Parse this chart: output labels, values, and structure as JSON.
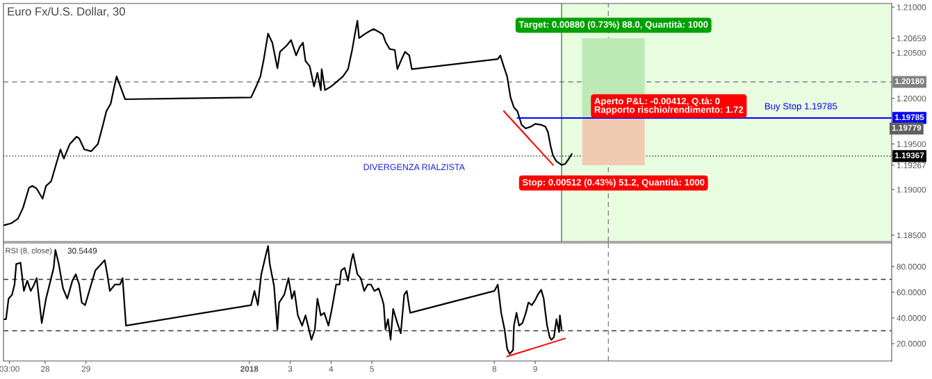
{
  "chart_data": [
    {
      "type": "line",
      "title": "Euro Fx/U.S. Dollar, 30",
      "xlim": [
        "2017-12-26T23:30",
        "2018-01-17T17:30"
      ],
      "ylim": [
        1.1843,
        1.2104
      ],
      "tick_labels": "y",
      "yticks": [
        {
          "value": 1.185,
          "label": "1.18500"
        },
        {
          "value": 1.19,
          "label": "1.19000"
        },
        {
          "value": 1.195,
          "label": "1.19500"
        },
        {
          "value": 1.2,
          "label": "1.20000"
        },
        {
          "value": 1.205,
          "label": "1.20500"
        },
        {
          "value": 1.21,
          "label": "1.21000"
        },
        {
          "value": 1.20659,
          "label": "1.20659"
        },
        {
          "value": 1.19267,
          "label": "1.19267"
        }
      ],
      "series": [
        {
          "color": "#000000",
          "x": [
            "2017-12-27T00:00",
            "2017-12-27T04:00",
            "2017-12-27T08:00",
            "2017-12-27T11:00",
            "2017-12-27T14:30",
            "2017-12-27T16:30",
            "2017-12-27T19:00",
            "2017-12-27T22:30",
            "2017-12-28T00:30",
            "2017-12-28T03:30",
            "2017-12-28T06:00",
            "2017-12-28T09:00",
            "2017-12-28T11:00",
            "2017-12-28T14:30",
            "2017-12-28T18:30",
            "2017-12-28T20:00",
            "2017-12-28T23:00",
            "2017-12-29T03:00",
            "2017-12-29T07:00",
            "2017-12-29T10:00",
            "2017-12-29T12:00",
            "2017-12-29T14:30",
            "2017-12-29T17:00",
            "2017-12-29T18:00",
            "2017-12-29T21:00",
            "2017-12-29T23:00",
            "2018-01-02T01:00",
            "2018-01-02T04:00",
            "2018-01-02T06:30",
            "2018-01-02T08:30",
            "2018-01-02T11:00",
            "2018-01-02T13:30",
            "2018-01-02T16:30",
            "2018-01-02T18:00",
            "2018-01-02T22:00",
            "2018-01-03T00:30",
            "2018-01-03T03:30",
            "2018-01-03T05:30",
            "2018-01-03T07:30",
            "2018-01-03T09:00",
            "2018-01-03T11:30",
            "2018-01-03T14:00",
            "2018-01-03T16:00",
            "2018-01-03T18:00",
            "2018-01-03T18:30",
            "2018-01-03T20:30",
            "2018-01-04T00:00",
            "2018-01-04T02:00",
            "2018-01-04T04:30",
            "2018-01-04T07:00",
            "2018-01-04T10:00",
            "2018-01-04T12:30",
            "2018-01-04T14:00",
            "2018-01-04T15:30",
            "2018-01-04T16:30",
            "2018-01-04T19:30",
            "2018-01-04T22:00",
            "2018-01-05T01:00",
            "2018-01-05T04:00",
            "2018-01-05T06:30",
            "2018-01-05T08:00",
            "2018-01-05T10:30",
            "2018-01-05T13:30",
            "2018-01-05T15:00",
            "2018-01-05T17:30",
            "2018-01-05T19:30",
            "2018-01-05T22:00",
            "2018-01-05T23:30",
            "2018-01-08T02:00",
            "2018-01-08T03:30",
            "2018-01-08T05:30",
            "2018-01-08T07:30",
            "2018-01-08T09:30",
            "2018-01-08T11:30",
            "2018-01-08T13:30",
            "2018-01-08T16:00",
            "2018-01-08T18:30",
            "2018-01-08T21:30",
            "2018-01-09T00:00",
            "2018-01-09T03:30",
            "2018-01-09T06:00",
            "2018-01-09T07:30",
            "2018-01-09T09:00",
            "2018-01-09T10:30",
            "2018-01-09T12:30",
            "2018-01-09T15:30",
            "2018-01-09T17:30",
            "2018-01-09T19:30",
            "2018-01-09T21:30"
          ],
          "values": [
            1.1861,
            1.1863,
            1.1868,
            1.188,
            1.1902,
            1.1904,
            1.1901,
            1.189,
            1.1904,
            1.1909,
            1.1925,
            1.1944,
            1.1934,
            1.195,
            1.1958,
            1.1956,
            1.1944,
            1.1942,
            1.195,
            1.1971,
            1.1986,
            1.1994,
            1.2016,
            1.2024,
            1.2009,
            1.1999,
            1.2001,
            1.2013,
            1.2024,
            1.2043,
            1.2071,
            1.2061,
            1.2033,
            1.2051,
            1.2058,
            1.2064,
            1.2047,
            1.2056,
            1.2061,
            1.2041,
            1.2035,
            1.2013,
            1.2028,
            1.2009,
            1.2032,
            1.2009,
            1.2013,
            1.2016,
            1.202,
            1.2024,
            1.2032,
            1.2054,
            1.207,
            1.2085,
            1.2066,
            1.207,
            1.2073,
            1.2076,
            1.2073,
            1.207,
            1.2062,
            1.2054,
            1.2053,
            1.2032,
            1.2043,
            1.2051,
            1.2047,
            1.2032,
            1.2043,
            1.2047,
            1.2035,
            1.2024,
            1.2001,
            1.199,
            1.1986,
            1.1971,
            1.1967,
            1.1969,
            1.1972,
            1.1971,
            1.1969,
            1.1963,
            1.1948,
            1.1937,
            1.1931,
            1.1927,
            1.1928,
            1.1933,
            1.1939
          ]
        },
        {
          "color": "#ff0000",
          "x": [
            "2018-01-08T05:30",
            "2018-01-09T10:30"
          ],
          "values": [
            1.1986,
            1.1927
          ]
        },
        {
          "name": "Buy Stop 1.19785",
          "color": "#0000ff",
          "x": [
            "2018-01-08T13:30",
            "2018-01-17T17:30"
          ],
          "values": [
            1.19785,
            1.19785
          ],
          "value_labels": [
            null,
            "1.19785"
          ]
        },
        {
          "type": "bar",
          "color": "#bde9b5",
          "x": [
            "2018-01-10T22:00"
          ],
          "base": [
            1.19779
          ],
          "values": [
            0.0088
          ],
          "value_labels": [
            "Target: 0.00880 (0.73%) 88.0, Quantità: 1000"
          ]
        },
        {
          "type": "bar",
          "color": "#f0cbb2",
          "x": [
            "2018-01-10T22:00"
          ],
          "base": [
            1.19267
          ],
          "values": [
            0.00512
          ],
          "value_labels": [
            "Stop: 0.00512 (0.43%) 51.2, Quantità: 1000"
          ]
        }
      ],
      "ref_lines": [
        {
          "axis": "y",
          "value": 1.2018,
          "label": "1.20180",
          "color": "#808080",
          "line_style": "dashed"
        },
        {
          "axis": "y",
          "value": 1.19367,
          "label": "1.19367",
          "color": "#000000",
          "line_style": "dotted"
        },
        {
          "axis": "x",
          "value": "2018-01-10T19:00",
          "color": "#808080",
          "line_style": "dashed"
        },
        {
          "axis": "x",
          "value": "2018-01-09T15:30",
          "color": "#3d8b2f",
          "line_style": "solid"
        }
      ],
      "bands": [
        {
          "axis": "x",
          "from": "2018-01-09T15:30",
          "to": "2018-01-17T17:30",
          "color": "#e8fce0"
        }
      ],
      "annotations": [
        "DIVERGENZA RIALZISTA",
        "1.19779",
        {
          "text": "Aperto P&L: -0.00412, Q.tà: 0\nRapporto rischio/rendimento: 1.72",
          "x": "2018-01-10T22:00",
          "y": 1.19779
        }
      ]
    },
    {
      "type": "line",
      "title": "RSI (8, close)",
      "annotations": [
        "30.5449"
      ],
      "xlim": [
        "2017-12-26T23:30",
        "2018-01-17T17:30"
      ],
      "ylim": [
        6.5,
        98.4
      ],
      "xticks": [
        {
          "value": "2017-12-27T03:00",
          "label": "03:00"
        },
        {
          "value": "2017-12-28",
          "label": "28"
        },
        {
          "value": "2017-12-29",
          "label": "29"
        },
        {
          "value": "2018-01-02",
          "label": "2018"
        },
        {
          "value": "2018-01-03",
          "label": "3"
        },
        {
          "value": "2018-01-04",
          "label": "4"
        },
        {
          "value": "2018-01-05",
          "label": "5"
        },
        {
          "value": "2018-01-08",
          "label": "8"
        },
        {
          "value": "2018-01-09",
          "label": "9"
        }
      ],
      "yticks": [
        {
          "value": 20,
          "label": "20.0000"
        },
        {
          "value": 40,
          "label": "40.0000"
        },
        {
          "value": 60,
          "label": "60.0000"
        },
        {
          "value": 80,
          "label": "80.0000"
        }
      ],
      "series": [
        {
          "color": "#000000",
          "x": [
            "2017-12-27T00:00",
            "2017-12-27T01:00",
            "2017-12-27T02:30",
            "2017-12-27T04:30",
            "2017-12-27T06:00",
            "2017-12-27T07:00",
            "2017-12-27T09:30",
            "2017-12-27T11:30",
            "2017-12-27T13:30",
            "2017-12-27T15:30",
            "2017-12-27T17:30",
            "2017-12-27T19:00",
            "2017-12-27T22:00",
            "2017-12-28T00:30",
            "2017-12-28T02:00",
            "2017-12-28T05:00",
            "2017-12-28T06:00",
            "2017-12-28T08:00",
            "2017-12-28T10:30",
            "2017-12-28T13:00",
            "2017-12-28T16:00",
            "2017-12-28T18:00",
            "2017-12-28T20:00",
            "2017-12-28T21:30",
            "2017-12-28T23:30",
            "2017-12-29T03:00",
            "2017-12-29T05:30",
            "2017-12-29T09:00",
            "2017-12-29T11:00",
            "2017-12-29T12:30",
            "2017-12-29T14:00",
            "2017-12-29T17:00",
            "2017-12-29T20:00",
            "2017-12-29T21:30",
            "2017-12-29T23:30",
            "2018-01-02T01:00",
            "2018-01-02T03:00",
            "2018-01-02T05:00",
            "2018-01-02T07:00",
            "2018-01-02T09:30",
            "2018-01-02T11:00",
            "2018-01-02T12:00",
            "2018-01-02T14:30",
            "2018-01-02T16:30",
            "2018-01-02T17:30",
            "2018-01-02T20:30",
            "2018-01-02T23:00",
            "2018-01-03T01:00",
            "2018-01-03T02:30",
            "2018-01-03T04:30",
            "2018-01-03T07:00",
            "2018-01-03T09:00",
            "2018-01-03T10:30",
            "2018-01-03T12:30",
            "2018-01-03T14:30",
            "2018-01-03T16:00",
            "2018-01-03T18:00",
            "2018-01-03T20:00",
            "2018-01-03T22:30",
            "2018-01-04T00:30",
            "2018-01-04T03:00",
            "2018-01-04T05:00",
            "2018-01-04T06:00",
            "2018-01-04T08:00",
            "2018-01-04T10:00",
            "2018-01-04T12:00",
            "2018-01-04T13:00",
            "2018-01-04T15:30",
            "2018-01-04T17:30",
            "2018-01-04T19:30",
            "2018-01-04T21:30",
            "2018-01-04T23:30",
            "2018-01-05T01:30",
            "2018-01-05T04:00",
            "2018-01-05T06:00",
            "2018-01-05T07:00",
            "2018-01-05T08:00",
            "2018-01-05T09:30",
            "2018-01-05T11:00",
            "2018-01-05T12:30",
            "2018-01-05T15:00",
            "2018-01-05T17:00",
            "2018-01-05T19:00",
            "2018-01-05T20:30",
            "2018-01-05T22:30",
            "2018-01-08T00:00",
            "2018-01-08T02:00",
            "2018-01-08T04:00",
            "2018-01-08T06:00",
            "2018-01-08T07:30",
            "2018-01-08T09:00",
            "2018-01-08T11:00",
            "2018-01-08T11:30",
            "2018-01-08T13:00",
            "2018-01-08T14:30",
            "2018-01-08T16:30",
            "2018-01-08T18:30",
            "2018-01-08T20:00",
            "2018-01-08T22:00",
            "2018-01-09T00:00",
            "2018-01-09T01:30",
            "2018-01-09T03:30",
            "2018-01-09T05:00",
            "2018-01-09T06:00",
            "2018-01-09T07:00",
            "2018-01-09T08:30",
            "2018-01-09T09:30",
            "2018-01-09T11:00",
            "2018-01-09T12:30",
            "2018-01-09T14:00",
            "2018-01-09T14:30",
            "2018-01-09T15:30"
          ],
          "values": [
            39,
            39,
            55,
            58,
            66,
            82,
            83,
            61,
            69,
            61,
            66,
            71,
            36,
            55,
            63,
            79,
            93,
            82,
            63,
            55,
            69,
            74,
            66,
            52,
            50,
            66,
            77,
            82,
            85,
            74,
            61,
            66,
            66,
            71,
            34,
            50,
            61,
            50,
            74,
            88,
            96,
            82,
            65,
            31,
            52,
            58,
            71,
            55,
            61,
            42,
            34,
            42,
            34,
            23,
            31,
            55,
            42,
            44,
            34,
            47,
            66,
            66,
            77,
            79,
            69,
            85,
            90,
            74,
            71,
            61,
            66,
            66,
            61,
            63,
            55,
            50,
            31,
            39,
            23,
            47,
            36,
            28,
            58,
            61,
            44,
            61,
            66,
            44,
            31,
            16,
            12,
            15,
            34,
            44,
            34,
            36,
            44,
            52,
            50,
            54,
            58,
            62,
            55,
            44,
            34,
            25,
            23,
            25,
            39,
            29,
            42,
            31
          ]
        },
        {
          "color": "#ff0000",
          "x": [
            "2018-01-08T07:30",
            "2018-01-09T17:30"
          ],
          "values": [
            10,
            24
          ]
        }
      ],
      "ref_lines": [
        {
          "axis": "y",
          "value": 70,
          "color": "#333333",
          "line_style": "dashed"
        },
        {
          "axis": "y",
          "value": 30,
          "color": "#333333",
          "line_style": "dashed"
        },
        {
          "axis": "x",
          "value": "2018-01-10T19:00",
          "color": "#808080",
          "line_style": "dashed"
        }
      ]
    }
  ]
}
